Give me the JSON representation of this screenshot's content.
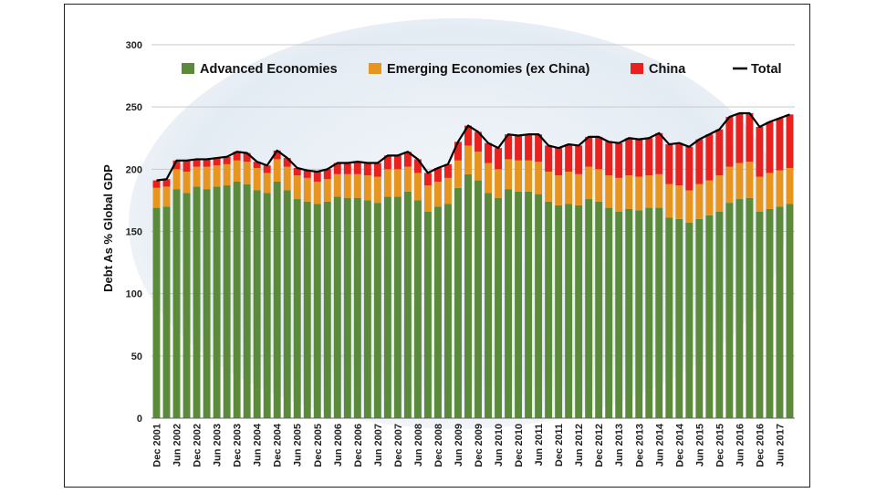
{
  "chart_data": {
    "type": "bar",
    "stacked": true,
    "title": "",
    "xlabel": "",
    "ylabel": "Debt As % Global GDP",
    "ylim": [
      0,
      300
    ],
    "yticks": [
      0,
      50,
      100,
      150,
      200,
      250,
      300
    ],
    "grid": true,
    "legend_position": "top",
    "tick_labels": [
      "Dec 2001",
      "Jun 2002",
      "Dec 2002",
      "Jun 2003",
      "Dec 2003",
      "Jun 2004",
      "Dec 2004",
      "Jun 2005",
      "Dec 2005",
      "Jun 2006",
      "Dec 2006",
      "Jun 2007",
      "Dec 2007",
      "Jun 2008",
      "Dec 2008",
      "Jun 2009",
      "Dec 2009",
      "Jun 2010",
      "Dec 2010",
      "Jun 2011",
      "Dec 2011",
      "Jun 2012",
      "Dec 2012",
      "Jun 2013",
      "Dec 2013",
      "Jun 2014",
      "Dec 2014",
      "Jun 2015",
      "Dec 2015",
      "Jun 2016",
      "Dec 2016",
      "Jun 2017"
    ],
    "quarters": 64,
    "series": [
      {
        "name": "Advanced Economies",
        "color": "#5a8a3a",
        "values": [
          169,
          170,
          184,
          181,
          186,
          184,
          186,
          187,
          190,
          188,
          183,
          181,
          190,
          183,
          176,
          174,
          172,
          174,
          178,
          177,
          177,
          175,
          173,
          178,
          178,
          182,
          175,
          166,
          170,
          172,
          185,
          196,
          191,
          181,
          177,
          184,
          182,
          182,
          180,
          174,
          171,
          172,
          171,
          176,
          174,
          169,
          166,
          168,
          167,
          169,
          169,
          161,
          160,
          157,
          160,
          163,
          166,
          173,
          176,
          177,
          166,
          168,
          170,
          172
        ]
      },
      {
        "name": "Emerging Economies (ex China)",
        "color": "#e8951f",
        "values": [
          16,
          16,
          16,
          17,
          16,
          18,
          17,
          17,
          17,
          18,
          18,
          16,
          18,
          19,
          19,
          19,
          18,
          18,
          18,
          19,
          19,
          20,
          21,
          22,
          22,
          20,
          22,
          21,
          20,
          21,
          22,
          23,
          23,
          24,
          23,
          24,
          25,
          25,
          26,
          24,
          24,
          26,
          25,
          26,
          26,
          26,
          27,
          27,
          27,
          26,
          27,
          27,
          27,
          26,
          28,
          28,
          29,
          29,
          29,
          29,
          28,
          29,
          29,
          29
        ]
      },
      {
        "name": "China",
        "color": "#e8201e",
        "values": [
          6,
          6,
          7,
          9,
          6,
          6,
          6,
          6,
          7,
          7,
          5,
          6,
          7,
          7,
          6,
          6,
          8,
          8,
          9,
          9,
          10,
          10,
          11,
          11,
          11,
          12,
          11,
          10,
          11,
          11,
          15,
          16,
          16,
          16,
          17,
          20,
          20,
          21,
          22,
          21,
          22,
          22,
          23,
          24,
          26,
          27,
          28,
          30,
          30,
          30,
          33,
          32,
          34,
          35,
          36,
          37,
          37,
          40,
          40,
          39,
          40,
          41,
          42,
          43
        ]
      },
      {
        "name": "Total",
        "color": "#000000",
        "type": "line",
        "values": [
          191,
          192,
          207,
          207,
          208,
          208,
          209,
          210,
          214,
          213,
          206,
          203,
          215,
          209,
          201,
          199,
          198,
          200,
          205,
          205,
          206,
          205,
          205,
          211,
          211,
          214,
          208,
          197,
          201,
          204,
          222,
          235,
          230,
          221,
          217,
          228,
          227,
          228,
          228,
          219,
          217,
          220,
          219,
          226,
          226,
          222,
          221,
          225,
          224,
          225,
          229,
          220,
          221,
          218,
          224,
          228,
          232,
          242,
          245,
          245,
          234,
          238,
          241,
          244
        ]
      }
    ]
  }
}
